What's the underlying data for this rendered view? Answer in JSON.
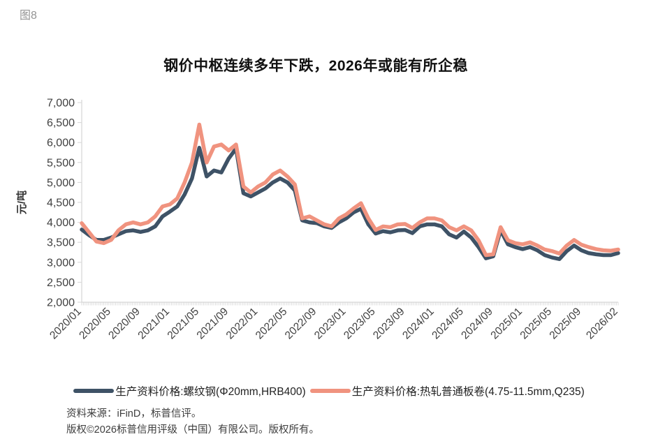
{
  "figure_label": "图8",
  "footer": {
    "source": "资料来源：iFinD，标普信评。",
    "copyright": "版权©2026标普信用评级（中国）有限公司。版权所有。"
  },
  "chart_data": {
    "type": "line",
    "title": "钢价中枢连续多年下跌，2026年或能有所企稳",
    "xlabel": "",
    "ylabel": "元/吨",
    "ylim": [
      2000,
      7000
    ],
    "ytick_step": 500,
    "ytick_labels": [
      "7,000",
      "6,500",
      "6,000",
      "5,500",
      "5,000",
      "4,500",
      "4,000",
      "3,500",
      "3,000",
      "2,500",
      "2,000"
    ],
    "grid": false,
    "legend_position": "bottom",
    "x_unit": "month",
    "x_start": "2020/01",
    "x_end": "2026/02",
    "x_month_count": 74,
    "xticks": [
      {
        "label": "2020/01",
        "m": 0
      },
      {
        "label": "2020/05",
        "m": 4
      },
      {
        "label": "2020/09",
        "m": 8
      },
      {
        "label": "2021/01",
        "m": 12
      },
      {
        "label": "2021/05",
        "m": 16
      },
      {
        "label": "2021/09",
        "m": 20
      },
      {
        "label": "2022/01",
        "m": 24
      },
      {
        "label": "2022/05",
        "m": 28
      },
      {
        "label": "2022/09",
        "m": 32
      },
      {
        "label": "2023/01",
        "m": 36
      },
      {
        "label": "2023/05",
        "m": 40
      },
      {
        "label": "2023/09",
        "m": 44
      },
      {
        "label": "2024/01",
        "m": 48
      },
      {
        "label": "2024/05",
        "m": 52
      },
      {
        "label": "2024/09",
        "m": 56
      },
      {
        "label": "2025/01",
        "m": 60
      },
      {
        "label": "2025/05",
        "m": 64
      },
      {
        "label": "2025/09",
        "m": 68
      },
      {
        "label": "2026/02",
        "m": 73
      }
    ],
    "series": [
      {
        "name": "生产资料价格:螺纹钢(Φ20mm,HRB400)",
        "color": "#3E5266",
        "values": [
          3820,
          3680,
          3560,
          3560,
          3620,
          3700,
          3780,
          3800,
          3760,
          3800,
          3900,
          4150,
          4270,
          4400,
          4700,
          5100,
          5870,
          5150,
          5300,
          5250,
          5600,
          5850,
          4730,
          4650,
          4750,
          4850,
          5000,
          5100,
          5000,
          4800,
          4050,
          4000,
          3980,
          3900,
          3860,
          4000,
          4100,
          4250,
          4340,
          3950,
          3720,
          3780,
          3750,
          3800,
          3810,
          3730,
          3900,
          3950,
          3950,
          3900,
          3700,
          3620,
          3770,
          3620,
          3380,
          3100,
          3150,
          3800,
          3450,
          3380,
          3330,
          3380,
          3300,
          3180,
          3120,
          3080,
          3280,
          3420,
          3300,
          3230,
          3200,
          3180,
          3180,
          3230
        ]
      },
      {
        "name": "生产资料价格:热轧普通板卷(4.75-11.5mm,Q235)",
        "color": "#F0937F",
        "values": [
          3980,
          3750,
          3520,
          3480,
          3560,
          3800,
          3950,
          4000,
          3950,
          4000,
          4150,
          4400,
          4450,
          4600,
          5000,
          5500,
          6450,
          5500,
          5900,
          5950,
          5800,
          5950,
          4900,
          4750,
          4900,
          5000,
          5200,
          5300,
          5150,
          4950,
          4100,
          4150,
          4050,
          3950,
          3900,
          4100,
          4200,
          4350,
          4480,
          4100,
          3810,
          3900,
          3880,
          3950,
          3960,
          3860,
          4000,
          4100,
          4100,
          4050,
          3880,
          3800,
          3900,
          3800,
          3550,
          3180,
          3200,
          3880,
          3550,
          3480,
          3450,
          3500,
          3420,
          3320,
          3280,
          3220,
          3420,
          3560,
          3440,
          3380,
          3330,
          3300,
          3290,
          3320
        ]
      }
    ],
    "style": {
      "axis_color": "#d6d6d6",
      "tick_label_color": "#404040",
      "line_width": 5.5
    }
  }
}
